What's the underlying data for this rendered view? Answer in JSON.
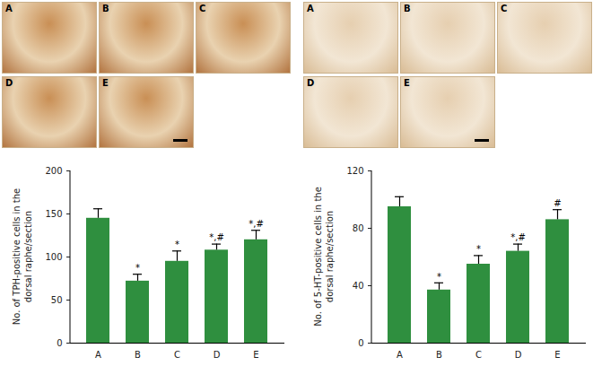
{
  "chart_data": [
    {
      "type": "bar",
      "y_label": "No. of TPH-positive cells in the dorsal raphe/section",
      "categories": [
        "A",
        "B",
        "C",
        "D",
        "E"
      ],
      "values": [
        145,
        72,
        95,
        108,
        120
      ],
      "errors": [
        11,
        8,
        12,
        7,
        11
      ],
      "annotations": [
        null,
        "*",
        "*",
        "*,#",
        "*,#"
      ],
      "color": "#2f8f3f",
      "ylim": [
        0,
        200
      ],
      "yticks": [
        0,
        50,
        100,
        150,
        200
      ],
      "grid": false
    },
    {
      "type": "bar",
      "y_label": "No. of 5-HT-positive cells in the dorsal raphe/section",
      "categories": [
        "A",
        "B",
        "C",
        "D",
        "E"
      ],
      "values": [
        95,
        37,
        55,
        64,
        86
      ],
      "errors": [
        7,
        5,
        6,
        5,
        7
      ],
      "annotations": [
        null,
        "*",
        "*",
        "*,#",
        "#"
      ],
      "color": "#2f8f3f",
      "ylim": [
        0,
        120
      ],
      "yticks": [
        0,
        40,
        80,
        120
      ],
      "grid": false
    }
  ],
  "micrograph_panels": [
    [
      "A",
      "B",
      "C",
      "D",
      "E"
    ],
    [
      "A",
      "B",
      "C",
      "D",
      "E"
    ]
  ]
}
